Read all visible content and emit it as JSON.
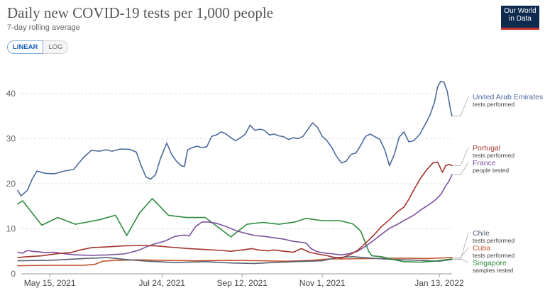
{
  "title": "Daily new COVID-19 tests per 1,000 people",
  "subtitle": "7-day rolling average",
  "logo_lines": [
    "Our World",
    "in Data"
  ],
  "scale_buttons": {
    "linear": "LINEAR",
    "log": "LOG"
  },
  "colors": {
    "uae": "#4c6a9c",
    "portugal": "#a2342d",
    "france": "#7b4f9e",
    "chile": "#586073",
    "cuba": "#c0532b",
    "singapore": "#2e8b3e"
  },
  "chart_data": {
    "type": "line",
    "x_start": "2021-04-25",
    "x_end": "2022-01-21",
    "xlim": [
      "2021-04-25",
      "2022-01-21"
    ],
    "ylim": [
      0,
      45
    ],
    "y_ticks": [
      0,
      10,
      20,
      30,
      40
    ],
    "x_ticks": [
      {
        "date": "2021-05-15",
        "label": "May 15, 2021"
      },
      {
        "date": "2021-07-24",
        "label": "Jul 24, 2021"
      },
      {
        "date": "2021-09-12",
        "label": "Sep 12, 2021"
      },
      {
        "date": "2021-11-01",
        "label": "Nov 1, 2021"
      },
      {
        "date": "2022-01-13",
        "label": "Jan 13, 2022"
      }
    ],
    "grid": "horizontal-dashed",
    "legend": "right-end labels",
    "series": [
      {
        "name": "United Arab Emirates",
        "sub": "tests performed",
        "color": "#4c6a9c",
        "points": [
          [
            "2021-04-25",
            18.5
          ],
          [
            "2021-04-27",
            17.3
          ],
          [
            "2021-05-01",
            18.5
          ],
          [
            "2021-05-04",
            21
          ],
          [
            "2021-05-07",
            22.8
          ],
          [
            "2021-05-12",
            22.3
          ],
          [
            "2021-05-18",
            22.2
          ],
          [
            "2021-05-24",
            22.8
          ],
          [
            "2021-05-30",
            23.2
          ],
          [
            "2021-06-02",
            24.5
          ],
          [
            "2021-06-05",
            25.8
          ],
          [
            "2021-06-10",
            27.4
          ],
          [
            "2021-06-15",
            27.2
          ],
          [
            "2021-06-19",
            27.5
          ],
          [
            "2021-06-23",
            27.2
          ],
          [
            "2021-06-28",
            27.7
          ],
          [
            "2021-07-04",
            27.6
          ],
          [
            "2021-07-08",
            27
          ],
          [
            "2021-07-11",
            24
          ],
          [
            "2021-07-14",
            21.5
          ],
          [
            "2021-07-17",
            21
          ],
          [
            "2021-07-20",
            22
          ],
          [
            "2021-07-23",
            25.5
          ],
          [
            "2021-07-27",
            29
          ],
          [
            "2021-07-30",
            26.5
          ],
          [
            "2021-08-02",
            25
          ],
          [
            "2021-08-05",
            24
          ],
          [
            "2021-08-07",
            23.8
          ],
          [
            "2021-08-09",
            27.5
          ],
          [
            "2021-08-12",
            28
          ],
          [
            "2021-08-15",
            28.3
          ],
          [
            "2021-08-18",
            28
          ],
          [
            "2021-08-21",
            28.2
          ],
          [
            "2021-08-24",
            30.5
          ],
          [
            "2021-08-27",
            30.8
          ],
          [
            "2021-08-30",
            31.5
          ],
          [
            "2021-09-02",
            31
          ],
          [
            "2021-09-05",
            30.2
          ],
          [
            "2021-09-08",
            29.5
          ],
          [
            "2021-09-11",
            30.2
          ],
          [
            "2021-09-14",
            31
          ],
          [
            "2021-09-17",
            33
          ],
          [
            "2021-09-20",
            31.8
          ],
          [
            "2021-09-23",
            32.1
          ],
          [
            "2021-09-26",
            31.8
          ],
          [
            "2021-09-29",
            30.8
          ],
          [
            "2021-10-02",
            31
          ],
          [
            "2021-10-05",
            30.6
          ],
          [
            "2021-10-08",
            30.4
          ],
          [
            "2021-10-11",
            29.8
          ],
          [
            "2021-10-14",
            30.2
          ],
          [
            "2021-10-17",
            30
          ],
          [
            "2021-10-20",
            30.5
          ],
          [
            "2021-10-23",
            32
          ],
          [
            "2021-10-26",
            33.5
          ],
          [
            "2021-10-29",
            32.5
          ],
          [
            "2021-11-01",
            30.5
          ],
          [
            "2021-11-04",
            29.5
          ],
          [
            "2021-11-07",
            28
          ],
          [
            "2021-11-10",
            26
          ],
          [
            "2021-11-13",
            24.6
          ],
          [
            "2021-11-16",
            25
          ],
          [
            "2021-11-19",
            26.5
          ],
          [
            "2021-11-22",
            26.8
          ],
          [
            "2021-11-25",
            28.5
          ],
          [
            "2021-11-28",
            30.5
          ],
          [
            "2021-12-01",
            31
          ],
          [
            "2021-12-04",
            30.4
          ],
          [
            "2021-12-07",
            29.8
          ],
          [
            "2021-12-10",
            27.5
          ],
          [
            "2021-12-13",
            24
          ],
          [
            "2021-12-16",
            26.5
          ],
          [
            "2021-12-19",
            30.3
          ],
          [
            "2021-12-22",
            31.5
          ],
          [
            "2021-12-25",
            29.3
          ],
          [
            "2021-12-28",
            29.5
          ],
          [
            "2022-01-01",
            31
          ],
          [
            "2022-01-04",
            33
          ],
          [
            "2022-01-07",
            35
          ],
          [
            "2022-01-10",
            38
          ],
          [
            "2022-01-12",
            41.5
          ],
          [
            "2022-01-14",
            42.7
          ],
          [
            "2022-01-16",
            42.5
          ],
          [
            "2022-01-18",
            40.5
          ],
          [
            "2022-01-19",
            38.5
          ],
          [
            "2022-01-20",
            36.5
          ],
          [
            "2022-01-21",
            35
          ]
        ]
      },
      {
        "name": "Portugal",
        "sub": "tests performed",
        "color": "#a2342d",
        "points": [
          [
            "2021-04-25",
            3.6
          ],
          [
            "2021-05-01",
            3.8
          ],
          [
            "2021-05-10",
            4.0
          ],
          [
            "2021-05-20",
            4.5
          ],
          [
            "2021-05-28",
            4.7
          ],
          [
            "2021-06-03",
            5.3
          ],
          [
            "2021-06-10",
            5.8
          ],
          [
            "2021-06-20",
            6.0
          ],
          [
            "2021-06-30",
            6.2
          ],
          [
            "2021-07-10",
            6.3
          ],
          [
            "2021-07-20",
            6.2
          ],
          [
            "2021-07-30",
            5.9
          ],
          [
            "2021-08-10",
            5.6
          ],
          [
            "2021-08-20",
            5.4
          ],
          [
            "2021-08-30",
            5.2
          ],
          [
            "2021-09-05",
            5.0
          ],
          [
            "2021-09-12",
            5.3
          ],
          [
            "2021-09-18",
            5.6
          ],
          [
            "2021-09-22",
            5.3
          ],
          [
            "2021-09-28",
            5.1
          ],
          [
            "2021-10-02",
            5.3
          ],
          [
            "2021-10-08",
            5.0
          ],
          [
            "2021-10-14",
            4.8
          ],
          [
            "2021-10-19",
            5.6
          ],
          [
            "2021-10-24",
            4.8
          ],
          [
            "2021-10-29",
            4.4
          ],
          [
            "2021-11-03",
            4.1
          ],
          [
            "2021-11-08",
            3.7
          ],
          [
            "2021-11-13",
            3.5
          ],
          [
            "2021-11-18",
            4.2
          ],
          [
            "2021-11-23",
            5.2
          ],
          [
            "2021-11-28",
            6.8
          ],
          [
            "2021-12-03",
            8.5
          ],
          [
            "2021-12-08",
            10.5
          ],
          [
            "2021-12-13",
            12
          ],
          [
            "2021-12-18",
            13.8
          ],
          [
            "2021-12-22",
            14.8
          ],
          [
            "2021-12-25",
            16.5
          ],
          [
            "2021-12-28",
            18.5
          ],
          [
            "2022-01-01",
            21
          ],
          [
            "2022-01-05",
            23
          ],
          [
            "2022-01-09",
            24.6
          ],
          [
            "2022-01-12",
            24.8
          ],
          [
            "2022-01-15",
            22.5
          ],
          [
            "2022-01-17",
            24
          ],
          [
            "2022-01-19",
            24.3
          ],
          [
            "2022-01-21",
            24
          ]
        ]
      },
      {
        "name": "France",
        "sub": "people tested",
        "color": "#7b4f9e",
        "points": [
          [
            "2021-04-25",
            4.8
          ],
          [
            "2021-04-28",
            4.6
          ],
          [
            "2021-05-01",
            5.2
          ],
          [
            "2021-05-04",
            5.0
          ],
          [
            "2021-05-08",
            4.9
          ],
          [
            "2021-05-12",
            4.7
          ],
          [
            "2021-05-18",
            4.8
          ],
          [
            "2021-05-25",
            4.4
          ],
          [
            "2021-06-01",
            4.2
          ],
          [
            "2021-06-10",
            4.1
          ],
          [
            "2021-06-20",
            4.2
          ],
          [
            "2021-06-30",
            4.4
          ],
          [
            "2021-07-05",
            4.8
          ],
          [
            "2021-07-10",
            5.3
          ],
          [
            "2021-07-15",
            6.1
          ],
          [
            "2021-07-20",
            6.7
          ],
          [
            "2021-07-26",
            7.3
          ],
          [
            "2021-08-01",
            8.3
          ],
          [
            "2021-08-07",
            8.6
          ],
          [
            "2021-08-10",
            8.4
          ],
          [
            "2021-08-14",
            10.5
          ],
          [
            "2021-08-18",
            11.5
          ],
          [
            "2021-08-22",
            11.5
          ],
          [
            "2021-08-27",
            11.2
          ],
          [
            "2021-09-02",
            10.5
          ],
          [
            "2021-09-08",
            9.6
          ],
          [
            "2021-09-14",
            9.0
          ],
          [
            "2021-09-20",
            8.5
          ],
          [
            "2021-09-26",
            8.3
          ],
          [
            "2021-10-02",
            8.0
          ],
          [
            "2021-10-08",
            7.7
          ],
          [
            "2021-10-14",
            7.2
          ],
          [
            "2021-10-19",
            7.0
          ],
          [
            "2021-10-22",
            6.8
          ],
          [
            "2021-10-25",
            5.6
          ],
          [
            "2021-10-29",
            4.9
          ],
          [
            "2021-11-03",
            4.6
          ],
          [
            "2021-11-08",
            4.4
          ],
          [
            "2021-11-13",
            4.2
          ],
          [
            "2021-11-18",
            4.5
          ],
          [
            "2021-11-23",
            5.0
          ],
          [
            "2021-11-28",
            6.1
          ],
          [
            "2021-12-03",
            7.4
          ],
          [
            "2021-12-08",
            8.8
          ],
          [
            "2021-12-13",
            10.1
          ],
          [
            "2021-12-18",
            11
          ],
          [
            "2021-12-23",
            12
          ],
          [
            "2021-12-28",
            13
          ],
          [
            "2022-01-02",
            14.3
          ],
          [
            "2022-01-06",
            15.2
          ],
          [
            "2022-01-10",
            16.2
          ],
          [
            "2022-01-14",
            17.6
          ],
          [
            "2022-01-17",
            19.5
          ],
          [
            "2022-01-19",
            20.5
          ],
          [
            "2022-01-21",
            22
          ]
        ]
      },
      {
        "name": "Chile",
        "sub": "tests performed",
        "color": "#586073",
        "points": [
          [
            "2021-04-25",
            2.9
          ],
          [
            "2021-05-15",
            3.0
          ],
          [
            "2021-06-05",
            3.4
          ],
          [
            "2021-06-20",
            3.6
          ],
          [
            "2021-07-01",
            3.2
          ],
          [
            "2021-07-15",
            2.8
          ],
          [
            "2021-08-01",
            2.5
          ],
          [
            "2021-08-20",
            2.7
          ],
          [
            "2021-09-05",
            2.4
          ],
          [
            "2021-09-20",
            2.3
          ],
          [
            "2021-10-01",
            2.5
          ],
          [
            "2021-10-15",
            2.7
          ],
          [
            "2021-11-01",
            2.9
          ],
          [
            "2021-11-10",
            3.6
          ],
          [
            "2021-11-20",
            3.8
          ],
          [
            "2021-12-01",
            3.5
          ],
          [
            "2021-12-15",
            3.2
          ],
          [
            "2022-01-01",
            3.0
          ],
          [
            "2022-01-13",
            2.8
          ],
          [
            "2022-01-21",
            3.2
          ]
        ]
      },
      {
        "name": "Cuba",
        "sub": "tests performed",
        "color": "#c0532b",
        "points": [
          [
            "2021-04-25",
            1.8
          ],
          [
            "2021-05-15",
            1.9
          ],
          [
            "2021-06-05",
            1.9
          ],
          [
            "2021-06-12",
            2.1
          ],
          [
            "2021-06-17",
            2.8
          ],
          [
            "2021-06-25",
            3.0
          ],
          [
            "2021-07-10",
            3.1
          ],
          [
            "2021-07-24",
            3.0
          ],
          [
            "2021-08-15",
            2.9
          ],
          [
            "2021-09-05",
            3.0
          ],
          [
            "2021-09-25",
            2.9
          ],
          [
            "2021-10-10",
            2.8
          ],
          [
            "2021-10-25",
            3.0
          ],
          [
            "2021-11-05",
            3.3
          ],
          [
            "2021-11-15",
            3.3
          ],
          [
            "2021-12-01",
            3.4
          ],
          [
            "2021-12-20",
            3.5
          ],
          [
            "2022-01-05",
            3.4
          ],
          [
            "2022-01-21",
            3.6
          ]
        ]
      },
      {
        "name": "Singapore",
        "sub": "samples tested",
        "color": "#2e8b3e",
        "points": [
          [
            "2021-04-25",
            15.5
          ],
          [
            "2021-04-28",
            16.2
          ],
          [
            "2021-05-10",
            10.8
          ],
          [
            "2021-05-20",
            12.5
          ],
          [
            "2021-05-31",
            11.0
          ],
          [
            "2021-06-15",
            12.0
          ],
          [
            "2021-06-25",
            13.0
          ],
          [
            "2021-07-02",
            8.5
          ],
          [
            "2021-07-10",
            13.5
          ],
          [
            "2021-07-18",
            16.7
          ],
          [
            "2021-07-28",
            13.0
          ],
          [
            "2021-08-08",
            12.5
          ],
          [
            "2021-08-20",
            12.5
          ],
          [
            "2021-09-05",
            8.2
          ],
          [
            "2021-09-15",
            11.0
          ],
          [
            "2021-09-25",
            11.4
          ],
          [
            "2021-10-05",
            11.0
          ],
          [
            "2021-10-15",
            11.5
          ],
          [
            "2021-10-22",
            12.3
          ],
          [
            "2021-11-01",
            11.8
          ],
          [
            "2021-11-12",
            11.8
          ],
          [
            "2021-11-20",
            11.1
          ],
          [
            "2021-11-25",
            9.5
          ],
          [
            "2021-11-30",
            5.0
          ],
          [
            "2021-12-02",
            4.0
          ],
          [
            "2021-12-08",
            3.8
          ],
          [
            "2021-12-15",
            3.2
          ],
          [
            "2021-12-22",
            2.7
          ],
          [
            "2022-01-01",
            2.6
          ],
          [
            "2022-01-10",
            2.8
          ],
          [
            "2022-01-21",
            3.3
          ]
        ]
      }
    ]
  }
}
